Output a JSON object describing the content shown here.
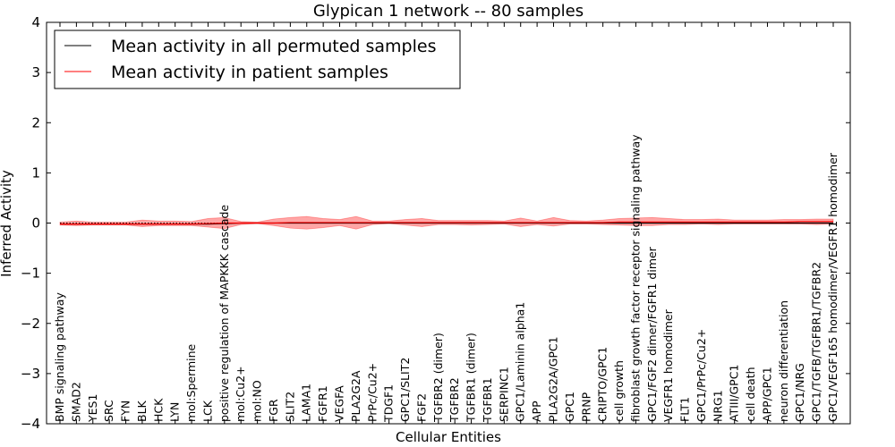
{
  "chart_data": {
    "type": "line",
    "title": "Glypican 1 network -- 80 samples",
    "xlabel": "Cellular Entities",
    "ylabel": "Inferred Activity",
    "ylim": [
      -4,
      4
    ],
    "yticks": [
      "4",
      "3",
      "2",
      "1",
      "0",
      "−1",
      "−2",
      "−3",
      "−4"
    ],
    "ytick_values": [
      4,
      3,
      2,
      1,
      0,
      -1,
      -2,
      -3,
      -4
    ],
    "grid": false,
    "legend_position": "top-left",
    "categories": [
      "BMP signaling pathway",
      "SMAD2",
      "YES1",
      "SRC",
      "FYN",
      "BLK",
      "HCK",
      "LYN",
      "mol:Spermine",
      "LCK",
      "positive regulation of MAPKKK cascade",
      "mol:Cu2+",
      "mol:NO",
      "FGR",
      "SLIT2",
      "LAMA1",
      "FGFR1",
      "VEGFA",
      "PLA2G2A",
      "PrPc/Cu2+",
      "TDGF1",
      "GPC1/SLIT2",
      "FGF2",
      "TGFBR2 (dimer)",
      "TGFBR2",
      "TGFBR1 (dimer)",
      "TGFBR1",
      "SERPINC1",
      "GPC1/Laminin alpha1",
      "APP",
      "PLA2G2A/GPC1",
      "GPC1",
      "PRNP",
      "CRIPTO/GPC1",
      "cell growth",
      "fibroblast growth factor receptor signaling pathway",
      "GPC1/FGF2 dimer/FGFR1 dimer",
      "VEGFR1 homodimer",
      "FLT1",
      "GPC1/PrPc/Cu2+",
      "NRG1",
      "ATIII/GPC1",
      "cell death",
      "APP/GPC1",
      "neuron differentiation",
      "GPC1/NRG",
      "GPC1/TGFB/TGFBR1/TGFBR2",
      "GPC1/VEGF165 homodimer/VEGFR1 homodimer"
    ],
    "series": [
      {
        "name": "Mean activity in all permuted samples",
        "color": "#000000",
        "style": "solid",
        "values": [
          -0.02,
          -0.02,
          -0.02,
          -0.02,
          -0.02,
          -0.02,
          -0.02,
          -0.02,
          -0.02,
          -0.02,
          -0.01,
          0,
          0,
          0,
          0,
          0,
          0,
          0,
          0,
          0,
          0,
          0,
          0,
          0,
          0,
          0,
          0,
          0,
          0,
          0,
          0,
          0,
          0,
          0,
          0,
          0,
          0,
          0,
          0,
          0,
          0,
          0,
          0,
          0,
          0,
          0,
          0,
          0
        ]
      },
      {
        "name": "Mean activity in patient samples",
        "color": "#ff0000",
        "style": "solid",
        "values": [
          -0.02,
          -0.02,
          -0.02,
          -0.02,
          -0.02,
          -0.02,
          -0.02,
          -0.02,
          -0.02,
          -0.01,
          0,
          0,
          0,
          0,
          0.01,
          0.01,
          0.01,
          0.01,
          0.01,
          0.01,
          0.01,
          0.01,
          0.01,
          0.01,
          0.01,
          0.01,
          0.01,
          0.01,
          0.01,
          0.01,
          0.01,
          0.01,
          0.01,
          0.01,
          0.02,
          0.02,
          0.02,
          0.02,
          0.02,
          0.02,
          0.02,
          0.02,
          0.02,
          0.02,
          0.02,
          0.03,
          0.03,
          0.03
        ],
        "band_lower": [
          -0.04,
          -0.05,
          -0.04,
          -0.04,
          -0.04,
          -0.07,
          -0.05,
          -0.05,
          -0.05,
          -0.08,
          -0.11,
          -0.03,
          -0.01,
          -0.05,
          -0.1,
          -0.12,
          -0.09,
          -0.05,
          -0.12,
          -0.03,
          -0.01,
          -0.04,
          -0.07,
          -0.03,
          -0.03,
          -0.04,
          -0.03,
          -0.02,
          -0.07,
          -0.03,
          -0.06,
          -0.02,
          -0.02,
          -0.03,
          -0.04,
          -0.05,
          -0.05,
          -0.03,
          -0.03,
          -0.02,
          -0.03,
          -0.02,
          -0.02,
          -0.02,
          -0.02,
          -0.02,
          -0.03,
          -0.02
        ],
        "band_upper": [
          0.02,
          0.04,
          0.02,
          0.02,
          0.02,
          0.06,
          0.04,
          0.04,
          0.03,
          0.09,
          0.11,
          0.03,
          0.02,
          0.08,
          0.11,
          0.13,
          0.09,
          0.07,
          0.13,
          0.04,
          0.04,
          0.07,
          0.09,
          0.05,
          0.05,
          0.05,
          0.05,
          0.04,
          0.1,
          0.04,
          0.11,
          0.05,
          0.04,
          0.06,
          0.09,
          0.1,
          0.11,
          0.09,
          0.07,
          0.07,
          0.08,
          0.06,
          0.06,
          0.06,
          0.07,
          0.07,
          0.08,
          0.08
        ]
      }
    ],
    "reference_line": {
      "y": 0,
      "style": "dotted",
      "color": "#000000"
    },
    "band_color": "#ff0000"
  }
}
